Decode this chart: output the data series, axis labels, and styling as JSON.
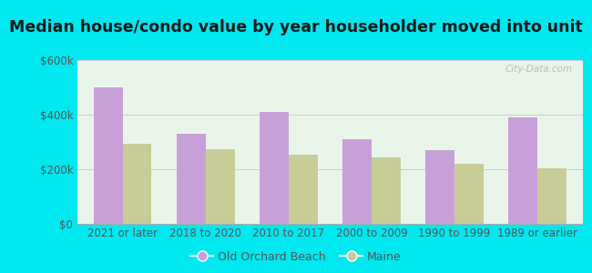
{
  "title": "Median house/condo value by year householder moved into unit",
  "categories": [
    "2021 or later",
    "2018 to 2020",
    "2010 to 2017",
    "2000 to 2009",
    "1990 to 1999",
    "1989 or earlier"
  ],
  "old_orchard_beach": [
    500000,
    330000,
    410000,
    310000,
    270000,
    390000
  ],
  "maine": [
    295000,
    275000,
    255000,
    245000,
    220000,
    205000
  ],
  "bar_color_oob": "#c8a0d8",
  "bar_color_maine": "#c8cc96",
  "background_outer": "#00e8f0",
  "background_inner": "#eaf5ea",
  "ylabel_color": "#555555",
  "title_color": "#1a1a1a",
  "legend_label_oob": "Old Orchard Beach",
  "legend_label_maine": "Maine",
  "ylim": [
    0,
    600000
  ],
  "yticks": [
    0,
    200000,
    400000,
    600000
  ],
  "watermark": "City-Data.com",
  "bar_width": 0.35,
  "title_fontsize": 12.5,
  "tick_fontsize": 8.5,
  "legend_fontsize": 9
}
